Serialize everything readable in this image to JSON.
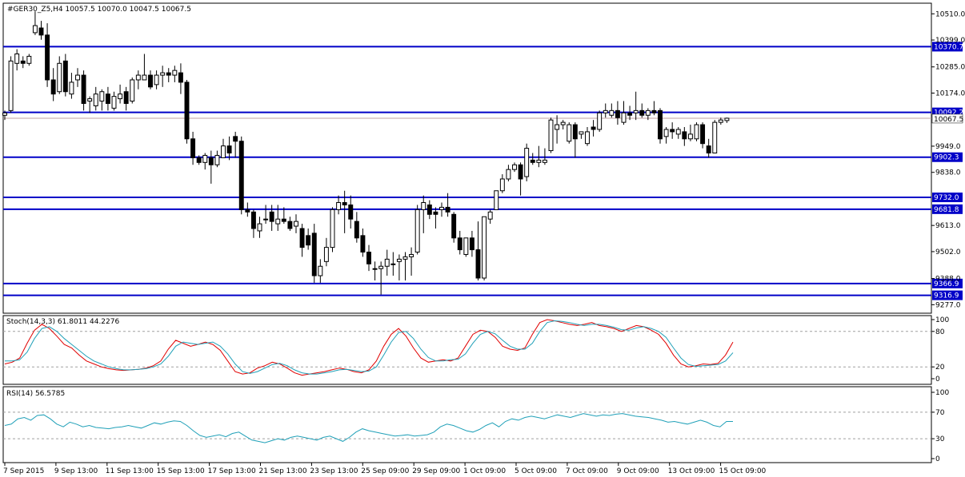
{
  "window": {
    "symbol_header": "#GER30_Z5,H4  10057.5 10070.0 10047.5 10067.5"
  },
  "colors": {
    "level_line": "#0000c8",
    "level_label_bg": "#0000c8",
    "stoch_main": "#e00000",
    "stoch_signal": "#20a0b8",
    "rsi": "#20a0b8",
    "grid_dash": "#a0a0a0",
    "current_price_line": "#c0a0a0"
  },
  "chart_data": [
    {
      "type": "candlestick",
      "title": "#GER30_Z5,H4  10057.5 10070.0 10047.5 10067.5",
      "ylim": [
        9241,
        10555
      ],
      "y_ticks": [
        "10510.0",
        "10399.0",
        "10285.0",
        "10174.0",
        "9949.0",
        "9838.0",
        "9613.0",
        "9502.0",
        "9388.0",
        "9277.0"
      ],
      "y_tick_values": [
        10510,
        10399,
        10285,
        10174,
        9949,
        9838,
        9613,
        9502,
        9388,
        9277
      ],
      "current_price": 10067.5,
      "current_price_label": "10067.5",
      "levels": [
        {
          "value": 10370.7,
          "label": "10370.7"
        },
        {
          "value": 10092.2,
          "label": "10092.2"
        },
        {
          "value": 9902.3,
          "label": "9902.3"
        },
        {
          "value": 9732.0,
          "label": "9732.0"
        },
        {
          "value": 9681.8,
          "label": "9681.8"
        },
        {
          "value": 9366.9,
          "label": "9366.9"
        },
        {
          "value": 9316.9,
          "label": "9316.9"
        }
      ],
      "x_labels": [
        "7 Sep 2015",
        "9 Sep 13:00",
        "11 Sep 13:00",
        "15 Sep 13:00",
        "17 Sep 13:00",
        "21 Sep 13:00",
        "23 Sep 13:00",
        "25 Sep 09:00",
        "29 Sep 09:00",
        "1 Oct 09:00",
        "5 Oct 09:00",
        "7 Oct 09:00",
        "9 Oct 09:00",
        "13 Oct 09:00",
        "15 Oct 09:00"
      ],
      "candles": [
        [
          10080,
          10100,
          10060,
          10090
        ],
        [
          10100,
          10330,
          10090,
          10310
        ],
        [
          10300,
          10360,
          10270,
          10340
        ],
        [
          10310,
          10330,
          10280,
          10300
        ],
        [
          10300,
          10340,
          10290,
          10330
        ],
        [
          10430,
          10520,
          10420,
          10460
        ],
        [
          10450,
          10480,
          10400,
          10420
        ],
        [
          10420,
          10470,
          10200,
          10230
        ],
        [
          10230,
          10280,
          10140,
          10170
        ],
        [
          10180,
          10330,
          10170,
          10300
        ],
        [
          10310,
          10340,
          10160,
          10180
        ],
        [
          10170,
          10260,
          10150,
          10220
        ],
        [
          10230,
          10280,
          10200,
          10250
        ],
        [
          10250,
          10270,
          10100,
          10130
        ],
        [
          10140,
          10160,
          10090,
          10150
        ],
        [
          10120,
          10200,
          10100,
          10170
        ],
        [
          10140,
          10190,
          10100,
          10180
        ],
        [
          10170,
          10200,
          10100,
          10130
        ],
        [
          10110,
          10180,
          10100,
          10160
        ],
        [
          10150,
          10210,
          10130,
          10170
        ],
        [
          10180,
          10200,
          10100,
          10130
        ],
        [
          10140,
          10240,
          10130,
          10230
        ],
        [
          10230,
          10270,
          10190,
          10250
        ],
        [
          10230,
          10340,
          10230,
          10250
        ],
        [
          10250,
          10270,
          10190,
          10200
        ],
        [
          10210,
          10270,
          10190,
          10250
        ],
        [
          10250,
          10290,
          10200,
          10260
        ],
        [
          10260,
          10280,
          10220,
          10250
        ],
        [
          10250,
          10290,
          10220,
          10270
        ],
        [
          10260,
          10300,
          10170,
          10220
        ],
        [
          10220,
          10230,
          9960,
          9980
        ],
        [
          9980,
          10010,
          9870,
          9900
        ],
        [
          9900,
          9910,
          9870,
          9880
        ],
        [
          9880,
          9920,
          9850,
          9910
        ],
        [
          9900,
          9930,
          9790,
          9870
        ],
        [
          9870,
          9930,
          9860,
          9910
        ],
        [
          9900,
          9980,
          9900,
          9950
        ],
        [
          9950,
          9990,
          9890,
          9920
        ],
        [
          9990,
          10010,
          9900,
          9970
        ],
        [
          9970,
          9990,
          9660,
          9680
        ],
        [
          9680,
          9710,
          9650,
          9670
        ],
        [
          9670,
          9680,
          9560,
          9600
        ],
        [
          9590,
          9650,
          9560,
          9620
        ],
        [
          9640,
          9700,
          9620,
          9640
        ],
        [
          9670,
          9700,
          9590,
          9630
        ],
        [
          9620,
          9700,
          9590,
          9640
        ],
        [
          9640,
          9690,
          9620,
          9630
        ],
        [
          9630,
          9650,
          9590,
          9600
        ],
        [
          9610,
          9660,
          9580,
          9630
        ],
        [
          9600,
          9620,
          9480,
          9520
        ],
        [
          9570,
          9600,
          9510,
          9530
        ],
        [
          9580,
          9620,
          9370,
          9400
        ],
        [
          9400,
          9470,
          9370,
          9440
        ],
        [
          9460,
          9560,
          9440,
          9520
        ],
        [
          9520,
          9690,
          9500,
          9680
        ],
        [
          9680,
          9740,
          9660,
          9710
        ],
        [
          9710,
          9760,
          9580,
          9700
        ],
        [
          9700,
          9740,
          9600,
          9640
        ],
        [
          9630,
          9670,
          9540,
          9560
        ],
        [
          9570,
          9600,
          9480,
          9500
        ],
        [
          9500,
          9530,
          9420,
          9450
        ],
        [
          9430,
          9460,
          9380,
          9430
        ],
        [
          9430,
          9460,
          9320,
          9440
        ],
        [
          9440,
          9510,
          9400,
          9470
        ],
        [
          9450,
          9500,
          9400,
          9450
        ],
        [
          9460,
          9490,
          9380,
          9470
        ],
        [
          9470,
          9500,
          9380,
          9480
        ],
        [
          9480,
          9520,
          9400,
          9490
        ],
        [
          9500,
          9700,
          9490,
          9680
        ],
        [
          9680,
          9740,
          9580,
          9710
        ],
        [
          9700,
          9720,
          9640,
          9660
        ],
        [
          9670,
          9690,
          9600,
          9660
        ],
        [
          9680,
          9710,
          9650,
          9690
        ],
        [
          9690,
          9750,
          9650,
          9670
        ],
        [
          9660,
          9670,
          9540,
          9560
        ],
        [
          9560,
          9590,
          9490,
          9510
        ],
        [
          9490,
          9560,
          9480,
          9560
        ],
        [
          9560,
          9590,
          9480,
          9510
        ],
        [
          9510,
          9630,
          9380,
          9390
        ],
        [
          9390,
          9640,
          9380,
          9650
        ],
        [
          9640,
          9680,
          9620,
          9670
        ],
        [
          9680,
          9760,
          9680,
          9760
        ],
        [
          9760,
          9830,
          9750,
          9810
        ],
        [
          9810,
          9870,
          9800,
          9850
        ],
        [
          9850,
          9880,
          9840,
          9870
        ],
        [
          9870,
          9880,
          9740,
          9810
        ],
        [
          9820,
          9960,
          9800,
          9940
        ],
        [
          9890,
          9920,
          9870,
          9880
        ],
        [
          9880,
          9950,
          9860,
          9890
        ],
        [
          9880,
          9940,
          9870,
          9890
        ],
        [
          9930,
          10070,
          9920,
          10060
        ],
        [
          10020,
          10080,
          9960,
          10040
        ],
        [
          10040,
          10060,
          10020,
          10050
        ],
        [
          9970,
          10050,
          9960,
          10040
        ],
        [
          10040,
          10050,
          9900,
          9980
        ],
        [
          10000,
          10010,
          9980,
          10010
        ],
        [
          9960,
          10030,
          9950,
          10010
        ],
        [
          10030,
          10060,
          9990,
          10020
        ],
        [
          10020,
          10100,
          10010,
          10090
        ],
        [
          10090,
          10130,
          10070,
          10100
        ],
        [
          10080,
          10130,
          10070,
          10100
        ],
        [
          10100,
          10140,
          10040,
          10070
        ],
        [
          10050,
          10140,
          10040,
          10090
        ],
        [
          10090,
          10120,
          10060,
          10080
        ],
        [
          10090,
          10180,
          10060,
          10100
        ],
        [
          10100,
          10130,
          10070,
          10080
        ],
        [
          10080,
          10110,
          10060,
          10100
        ],
        [
          10100,
          10140,
          10080,
          10090
        ],
        [
          10100,
          10110,
          9960,
          9980
        ],
        [
          9990,
          10030,
          9960,
          10020
        ],
        [
          10020,
          10050,
          9980,
          10010
        ],
        [
          10000,
          10030,
          9980,
          10020
        ],
        [
          10010,
          10030,
          9950,
          9980
        ],
        [
          9980,
          10040,
          9970,
          10000
        ],
        [
          9980,
          10050,
          9970,
          10040
        ],
        [
          10040,
          10050,
          9940,
          9960
        ],
        [
          9950,
          9980,
          9900,
          9920
        ],
        [
          9920,
          10060,
          9920,
          10050
        ],
        [
          10050,
          10070,
          10040,
          10060
        ],
        [
          10057.5,
          10070,
          10047.5,
          10067.5
        ]
      ]
    },
    {
      "type": "line",
      "title": "Stoch(14,3,3) 61.8011 44.2276",
      "ylim": [
        0,
        100
      ],
      "y_ticks": [
        "100",
        "80",
        "20",
        "0"
      ],
      "y_tick_values": [
        100,
        80,
        20,
        0
      ],
      "dashed_levels": [
        80,
        20
      ],
      "series": [
        {
          "name": "main",
          "values": [
            25,
            28,
            35,
            60,
            82,
            92,
            85,
            72,
            58,
            52,
            40,
            30,
            25,
            20,
            17,
            15,
            14,
            15,
            16,
            18,
            22,
            30,
            50,
            65,
            60,
            55,
            58,
            62,
            58,
            48,
            30,
            12,
            8,
            10,
            18,
            22,
            28,
            25,
            18,
            10,
            6,
            8,
            10,
            12,
            15,
            18,
            16,
            12,
            10,
            15,
            30,
            55,
            75,
            85,
            72,
            52,
            35,
            28,
            30,
            32,
            30,
            35,
            55,
            75,
            82,
            80,
            70,
            55,
            50,
            48,
            52,
            75,
            95,
            100,
            98,
            95,
            92,
            90,
            92,
            95,
            90,
            88,
            85,
            80,
            85,
            90,
            88,
            82,
            75,
            60,
            40,
            25,
            20,
            22,
            25,
            24,
            26,
            40,
            62
          ]
        },
        {
          "name": "signal",
          "values": [
            30,
            30,
            32,
            45,
            68,
            85,
            88,
            80,
            68,
            58,
            48,
            38,
            30,
            25,
            20,
            17,
            15,
            15,
            16,
            17,
            20,
            25,
            38,
            55,
            62,
            60,
            58,
            60,
            62,
            55,
            42,
            25,
            12,
            9,
            12,
            18,
            24,
            26,
            22,
            15,
            10,
            8,
            8,
            10,
            12,
            15,
            16,
            14,
            12,
            13,
            20,
            40,
            62,
            78,
            80,
            68,
            50,
            36,
            30,
            30,
            32,
            33,
            42,
            60,
            75,
            80,
            76,
            65,
            55,
            50,
            50,
            60,
            80,
            95,
            98,
            97,
            95,
            92,
            90,
            92,
            92,
            90,
            87,
            83,
            82,
            86,
            88,
            85,
            80,
            70,
            52,
            35,
            24,
            21,
            22,
            23,
            24,
            30,
            44
          ]
        }
      ]
    },
    {
      "type": "line",
      "title": "RSI(14) 56.5785",
      "ylim": [
        0,
        100
      ],
      "y_ticks": [
        "100",
        "70",
        "30",
        "0"
      ],
      "y_tick_values": [
        100,
        70,
        30,
        0
      ],
      "dashed_levels": [
        70,
        30
      ],
      "series": [
        {
          "name": "RSI",
          "values": [
            50,
            52,
            60,
            62,
            58,
            65,
            66,
            60,
            52,
            48,
            55,
            52,
            48,
            50,
            47,
            46,
            45,
            47,
            48,
            50,
            48,
            46,
            50,
            54,
            52,
            55,
            57,
            56,
            50,
            42,
            35,
            32,
            34,
            36,
            33,
            38,
            40,
            34,
            28,
            26,
            24,
            27,
            30,
            28,
            32,
            34,
            32,
            30,
            28,
            32,
            34,
            30,
            26,
            32,
            40,
            45,
            42,
            40,
            38,
            36,
            34,
            35,
            36,
            34,
            35,
            36,
            40,
            48,
            52,
            50,
            46,
            42,
            40,
            44,
            50,
            54,
            48,
            56,
            60,
            58,
            62,
            64,
            62,
            60,
            63,
            66,
            64,
            62,
            65,
            68,
            66,
            64,
            66,
            65,
            67,
            68,
            66,
            64,
            63,
            62,
            60,
            58,
            55,
            56,
            54,
            52,
            55,
            58,
            55,
            50,
            48,
            56,
            56
          ]
        }
      ]
    }
  ]
}
